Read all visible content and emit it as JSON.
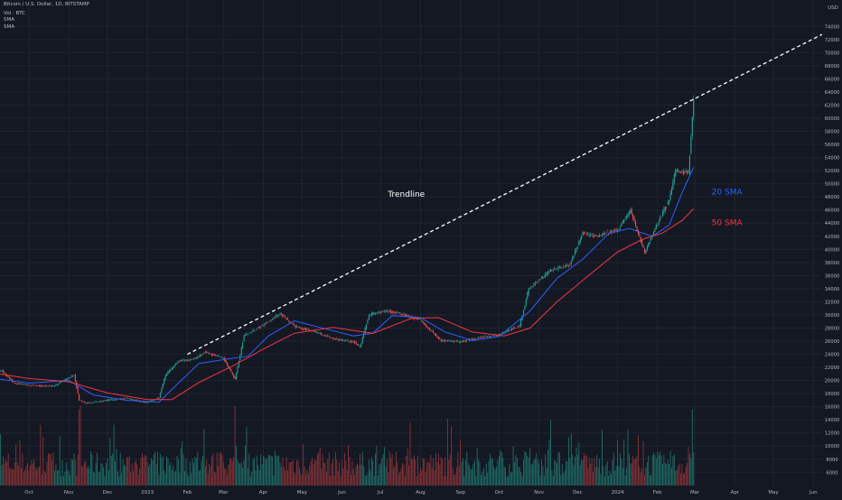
{
  "header": {
    "title": "Bitcoin / U.S. Dollar, 1D, BITSTAMP",
    "volume_label": "Vol · BTC",
    "sma_1": "SMA",
    "sma_2": "SMA"
  },
  "chart_data": {
    "type": "candlestick",
    "currency_label": "USD",
    "y_ticks": [
      6000,
      8000,
      10000,
      12000,
      14000,
      16000,
      18000,
      20000,
      22000,
      24000,
      26000,
      28000,
      30000,
      32000,
      34000,
      36000,
      38000,
      40000,
      42000,
      44000,
      46000,
      48000,
      50000,
      52000,
      54000,
      56000,
      58000,
      60000,
      62000,
      64000,
      66000,
      68000,
      70000,
      72000,
      74000
    ],
    "ylim": [
      6000,
      74000
    ],
    "x_ticks": [
      {
        "label": "Oct",
        "date": "2022-10-01"
      },
      {
        "label": "Nov",
        "date": "2022-11-01"
      },
      {
        "label": "Dec",
        "date": "2022-12-01"
      },
      {
        "label": "2023",
        "date": "2023-01-01"
      },
      {
        "label": "Feb",
        "date": "2023-02-01"
      },
      {
        "label": "Mar",
        "date": "2023-03-01"
      },
      {
        "label": "Apr",
        "date": "2023-04-01"
      },
      {
        "label": "May",
        "date": "2023-05-01"
      },
      {
        "label": "Jun",
        "date": "2023-06-01"
      },
      {
        "label": "Jul",
        "date": "2023-07-01"
      },
      {
        "label": "Aug",
        "date": "2023-08-01"
      },
      {
        "label": "Sep",
        "date": "2023-09-01"
      },
      {
        "label": "Oct",
        "date": "2023-10-01"
      },
      {
        "label": "Nov",
        "date": "2023-11-01"
      },
      {
        "label": "Dec",
        "date": "2023-12-01"
      },
      {
        "label": "2024",
        "date": "2024-01-01"
      },
      {
        "label": "Feb",
        "date": "2024-02-01"
      },
      {
        "label": "Mar",
        "date": "2024-03-01"
      },
      {
        "label": "Apr",
        "date": "2024-04-01"
      },
      {
        "label": "May",
        "date": "2024-05-01"
      },
      {
        "label": "Jun",
        "date": "2024-06-01"
      }
    ],
    "price_path": [
      [
        "2022-09-01",
        21000
      ],
      [
        "2022-09-10",
        21500
      ],
      [
        "2022-09-20",
        19500
      ],
      [
        "2022-10-01",
        19300
      ],
      [
        "2022-10-20",
        19100
      ],
      [
        "2022-11-05",
        20900
      ],
      [
        "2022-11-09",
        17000
      ],
      [
        "2022-11-15",
        16500
      ],
      [
        "2022-12-01",
        17000
      ],
      [
        "2022-12-15",
        17300
      ],
      [
        "2023-01-01",
        16600
      ],
      [
        "2023-01-10",
        17400
      ],
      [
        "2023-01-15",
        20800
      ],
      [
        "2023-01-25",
        23000
      ],
      [
        "2023-02-05",
        23200
      ],
      [
        "2023-02-15",
        24300
      ],
      [
        "2023-03-01",
        23400
      ],
      [
        "2023-03-10",
        20200
      ],
      [
        "2023-03-17",
        26800
      ],
      [
        "2023-04-01",
        28500
      ],
      [
        "2023-04-14",
        30200
      ],
      [
        "2023-04-25",
        28300
      ],
      [
        "2023-05-10",
        27500
      ],
      [
        "2023-05-25",
        26400
      ],
      [
        "2023-06-10",
        25900
      ],
      [
        "2023-06-15",
        25100
      ],
      [
        "2023-06-22",
        30000
      ],
      [
        "2023-07-05",
        30600
      ],
      [
        "2023-07-15",
        30300
      ],
      [
        "2023-08-01",
        29200
      ],
      [
        "2023-08-17",
        26100
      ],
      [
        "2023-09-01",
        25900
      ],
      [
        "2023-09-15",
        26500
      ],
      [
        "2023-10-01",
        27000
      ],
      [
        "2023-10-17",
        28400
      ],
      [
        "2023-10-24",
        34000
      ],
      [
        "2023-11-10",
        36800
      ],
      [
        "2023-11-25",
        37700
      ],
      [
        "2023-12-05",
        42500
      ],
      [
        "2023-12-15",
        42000
      ],
      [
        "2024-01-01",
        43000
      ],
      [
        "2024-01-11",
        46000
      ],
      [
        "2024-01-22",
        39500
      ],
      [
        "2024-01-30",
        43200
      ],
      [
        "2024-02-10",
        47500
      ],
      [
        "2024-02-15",
        52000
      ],
      [
        "2024-02-25",
        51700
      ],
      [
        "2024-02-28",
        60000
      ],
      [
        "2024-02-29",
        63000
      ]
    ],
    "series": [
      {
        "name": "20 SMA",
        "color": "#2962ff",
        "points": [
          [
            "2022-09-01",
            20400
          ],
          [
            "2022-10-01",
            19600
          ],
          [
            "2022-11-01",
            20000
          ],
          [
            "2022-11-20",
            17800
          ],
          [
            "2022-12-15",
            17000
          ],
          [
            "2023-01-10",
            16700
          ],
          [
            "2023-01-25",
            19600
          ],
          [
            "2023-02-10",
            22600
          ],
          [
            "2023-03-05",
            23300
          ],
          [
            "2023-03-20",
            23700
          ],
          [
            "2023-04-05",
            26800
          ],
          [
            "2023-04-25",
            29100
          ],
          [
            "2023-05-15",
            28100
          ],
          [
            "2023-06-10",
            26800
          ],
          [
            "2023-06-25",
            27200
          ],
          [
            "2023-07-10",
            29900
          ],
          [
            "2023-08-01",
            29600
          ],
          [
            "2023-08-20",
            27400
          ],
          [
            "2023-09-10",
            26100
          ],
          [
            "2023-10-01",
            26700
          ],
          [
            "2023-10-25",
            30600
          ],
          [
            "2023-11-15",
            35600
          ],
          [
            "2023-12-05",
            38500
          ],
          [
            "2023-12-25",
            42400
          ],
          [
            "2024-01-10",
            43200
          ],
          [
            "2024-01-28",
            42000
          ],
          [
            "2024-02-10",
            43700
          ],
          [
            "2024-02-20",
            48600
          ],
          [
            "2024-02-29",
            52500
          ]
        ]
      },
      {
        "name": "50 SMA",
        "color": "#f23645",
        "points": [
          [
            "2022-09-01",
            21200
          ],
          [
            "2022-10-01",
            20300
          ],
          [
            "2022-11-01",
            19800
          ],
          [
            "2022-12-01",
            18100
          ],
          [
            "2023-01-01",
            17100
          ],
          [
            "2023-01-20",
            17100
          ],
          [
            "2023-02-10",
            19700
          ],
          [
            "2023-03-10",
            22400
          ],
          [
            "2023-04-01",
            24800
          ],
          [
            "2023-04-25",
            27200
          ],
          [
            "2023-05-25",
            28100
          ],
          [
            "2023-06-25",
            27200
          ],
          [
            "2023-07-25",
            29500
          ],
          [
            "2023-08-15",
            29600
          ],
          [
            "2023-09-10",
            27400
          ],
          [
            "2023-10-05",
            26800
          ],
          [
            "2023-10-25",
            28000
          ],
          [
            "2023-11-15",
            32000
          ],
          [
            "2023-12-10",
            36100
          ],
          [
            "2024-01-01",
            39600
          ],
          [
            "2024-01-20",
            41500
          ],
          [
            "2024-02-05",
            42500
          ],
          [
            "2024-02-20",
            44400
          ],
          [
            "2024-02-29",
            46200
          ]
        ]
      }
    ],
    "trendline": {
      "style": "dashed",
      "color": "#ffffff",
      "from": [
        "2023-02-01",
        24000
      ],
      "to": [
        "2024-06-10",
        73000
      ]
    },
    "annotations": [
      {
        "text": "Trendline",
        "color": "#ffffff",
        "date": "2023-07-21",
        "price": 48000
      },
      {
        "text": "20 SMA",
        "color": "#2962ff",
        "date": "2024-03-14",
        "price": 48400
      },
      {
        "text": "50 SMA",
        "color": "#f23645",
        "date": "2024-03-14",
        "price": 43700
      }
    ],
    "colors": {
      "up": "#26a69a",
      "down": "#ef5350",
      "vol_up": "#1f6f68",
      "vol_down": "#8a3338",
      "background": "#141823",
      "grid": "#1f2431",
      "axis_text": "#b2b5be"
    },
    "volume": {
      "range": "relative",
      "spike_dates": [
        "2022-11-09",
        "2022-11-10",
        "2023-03-10",
        "2024-02-28"
      ]
    }
  }
}
